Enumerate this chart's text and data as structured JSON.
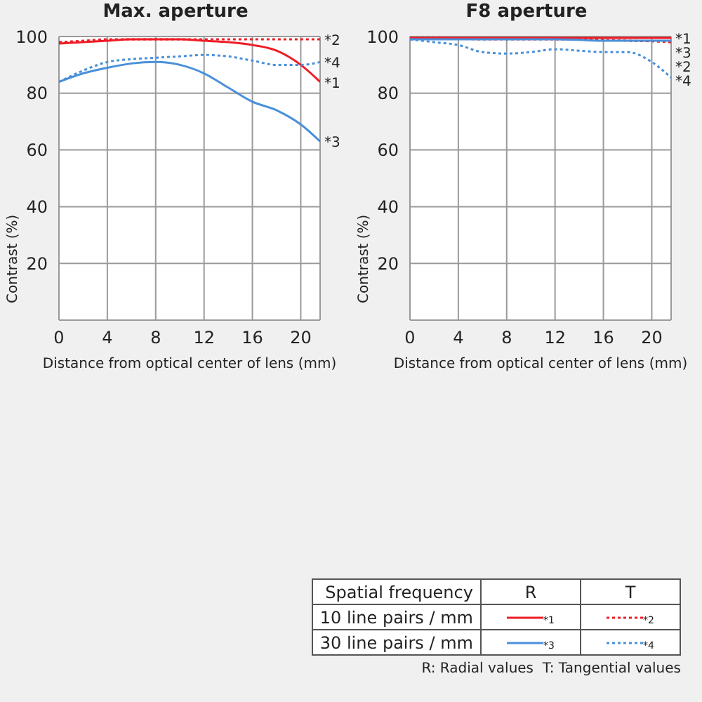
{
  "chart_data": [
    {
      "type": "line",
      "title": "Max. aperture",
      "xlabel": "Distance from optical center of lens (mm)",
      "ylabel": "Contrast (%)",
      "x": [
        0,
        2,
        4,
        6,
        8,
        10,
        12,
        14,
        16,
        18,
        20,
        21.6
      ],
      "xlim": [
        0,
        21.6
      ],
      "xticks": [
        0,
        4,
        8,
        12,
        16,
        20
      ],
      "ylim": [
        0,
        100
      ],
      "yticks": [
        20,
        40,
        60,
        80,
        100
      ],
      "grid": true,
      "legend": false,
      "series": [
        {
          "name": "*1",
          "color": "#ee1c25",
          "line_style": "solid",
          "values": [
            97.5,
            98,
            98.5,
            99,
            99,
            99,
            98.5,
            98,
            97,
            95,
            90,
            84
          ]
        },
        {
          "name": "*2",
          "color": "#ee1c25",
          "line_style": "dotted",
          "values": [
            98,
            98.5,
            99,
            99,
            99,
            99,
            99,
            99,
            99,
            99,
            99,
            99
          ]
        },
        {
          "name": "*3",
          "color": "#4a90d9",
          "line_style": "solid",
          "values": [
            84,
            87,
            89,
            90.5,
            91,
            90,
            87,
            82,
            77,
            74,
            69,
            63
          ]
        },
        {
          "name": "*4",
          "color": "#4a90d9",
          "line_style": "dotted",
          "values": [
            84,
            88,
            91,
            92,
            92.5,
            93,
            93.5,
            93,
            91.5,
            90,
            90,
            91
          ]
        }
      ]
    },
    {
      "type": "line",
      "title": "F8 aperture",
      "xlabel": "Distance from optical center of lens (mm)",
      "ylabel": "Contrast (%)",
      "x": [
        0,
        2,
        4,
        6,
        8,
        10,
        12,
        14,
        16,
        18,
        20,
        21.6
      ],
      "xlim": [
        0,
        21.6
      ],
      "xticks": [
        0,
        4,
        8,
        12,
        16,
        20
      ],
      "ylim": [
        0,
        100
      ],
      "yticks": [
        20,
        40,
        60,
        80,
        100
      ],
      "grid": true,
      "legend": "bottom",
      "annotations": [
        "Spatial frequency",
        "R",
        "T",
        "10 line pairs / mm",
        "30 line pairs / mm",
        "R: Radial values  T: Tangential values"
      ],
      "series": [
        {
          "name": "*1",
          "color": "#ee1c25",
          "line_style": "solid",
          "values": [
            99.5,
            99.5,
            99.5,
            99.5,
            99.5,
            99.5,
            99.5,
            99.5,
            99.5,
            99.5,
            99.5,
            99.5
          ]
        },
        {
          "name": "*2",
          "color": "#ee1c25",
          "line_style": "dotted",
          "values": [
            99.5,
            99.5,
            99.3,
            99,
            99,
            99,
            99,
            99,
            98.8,
            98.5,
            98.3,
            98
          ]
        },
        {
          "name": "*3",
          "color": "#4a90d9",
          "line_style": "solid",
          "values": [
            99,
            99,
            99,
            99,
            99,
            99,
            99,
            98.8,
            98.5,
            98.5,
            98.5,
            98.5
          ]
        },
        {
          "name": "*4",
          "color": "#4a90d9",
          "line_style": "dotted",
          "values": [
            99,
            98,
            97,
            94.5,
            94,
            94.5,
            95.5,
            95,
            94.5,
            94.5,
            91,
            85.5
          ]
        }
      ]
    }
  ]
}
